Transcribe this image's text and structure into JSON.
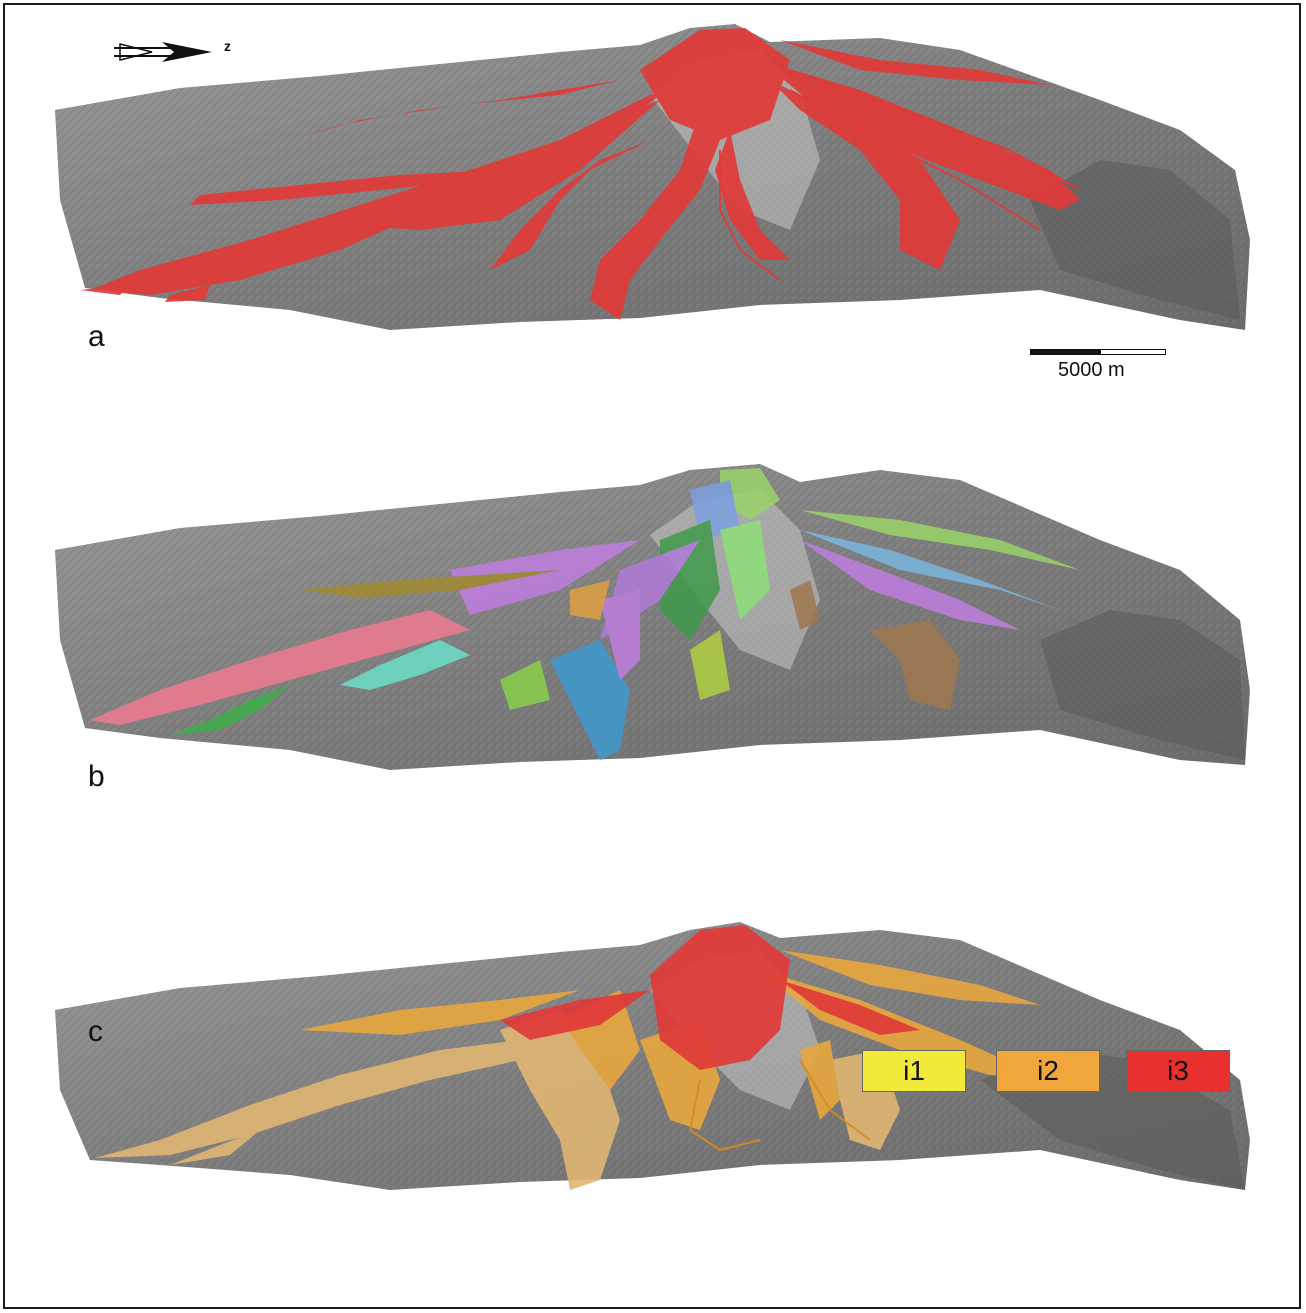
{
  "north_arrow": {
    "label": "z"
  },
  "scale_bar": {
    "label": "5000 m"
  },
  "panels": [
    {
      "label": "a"
    },
    {
      "label": "b"
    },
    {
      "label": "c"
    }
  ],
  "legend": {
    "items": [
      {
        "label": "i1",
        "color": "#f2ea3a"
      },
      {
        "label": "i2",
        "color": "#f0a63a"
      },
      {
        "label": "i3",
        "color": "#e8312e"
      }
    ]
  },
  "colors": {
    "terrain": "#8a8a8a",
    "lava_red": "#e03a38",
    "lava_orange": "#e8a73e",
    "lava_tan": "#e0b673"
  }
}
